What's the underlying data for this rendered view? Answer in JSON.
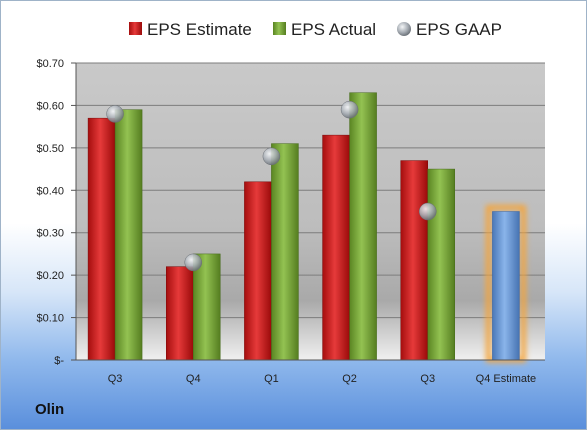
{
  "company": "Olin",
  "chart_data": {
    "type": "bar",
    "categories": [
      "Q3",
      "Q4",
      "Q1",
      "Q2",
      "Q3",
      "Q4 Estimate"
    ],
    "series": [
      {
        "name": "EPS Estimate",
        "color": "#d42020",
        "values": [
          0.57,
          0.22,
          0.42,
          0.53,
          0.47,
          null
        ]
      },
      {
        "name": "EPS Actual",
        "color": "#7aa83a",
        "values": [
          0.59,
          0.25,
          0.51,
          0.63,
          0.45,
          null
        ]
      },
      {
        "name": "EPS GAAP",
        "color": "#a8aeb5",
        "values": [
          0.58,
          0.23,
          0.48,
          0.59,
          0.35,
          null
        ]
      }
    ],
    "estimate_bar": {
      "category": "Q4 Estimate",
      "value": 0.35,
      "color": "#6a9ad8",
      "glow": "#f5a53a"
    },
    "y_ticks": [
      {
        "value": 0,
        "label": "$-"
      },
      {
        "value": 0.1,
        "label": "$0.10"
      },
      {
        "value": 0.2,
        "label": "$0.20"
      },
      {
        "value": 0.3,
        "label": "$0.30"
      },
      {
        "value": 0.4,
        "label": "$0.40"
      },
      {
        "value": 0.5,
        "label": "$0.50"
      },
      {
        "value": 0.6,
        "label": "$0.60"
      },
      {
        "value": 0.7,
        "label": "$0.70"
      }
    ],
    "ylim": [
      0,
      0.7
    ],
    "legend_position": "top",
    "grid": true
  }
}
